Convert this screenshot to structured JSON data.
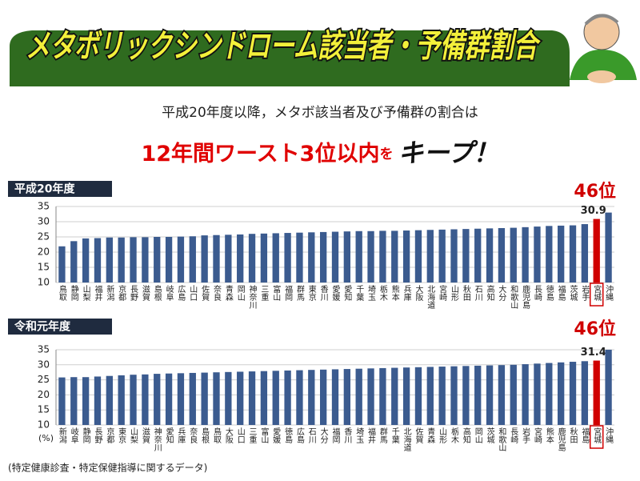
{
  "header": {
    "title": "メタボリックシンドローム該当者・予備群割合",
    "subtitle": "平成20年度以降，メタボ該当者及び予備群の割合は",
    "headline": [
      "12年間ワースト3位以内",
      "を",
      "キープ！"
    ]
  },
  "chart_data": [
    {
      "type": "bar",
      "title": "平成20年度",
      "categories": [
        "鳥取",
        "静岡",
        "山梨",
        "福井",
        "新潟",
        "京都",
        "長野",
        "滋賀",
        "島根",
        "岐阜",
        "広島",
        "山口",
        "佐賀",
        "奈良",
        "青森",
        "岡山",
        "神奈川",
        "三重",
        "富山",
        "福岡",
        "群馬",
        "東京",
        "香川",
        "愛媛",
        "愛知",
        "千葉",
        "埼玉",
        "栃木",
        "熊本",
        "兵庫",
        "大阪",
        "北海道",
        "宮崎",
        "山形",
        "秋田",
        "石川",
        "高知",
        "大分",
        "和歌山",
        "鹿児島",
        "長崎",
        "徳島",
        "福島",
        "茨城",
        "岩手",
        "宮城",
        "沖縄"
      ],
      "values": [
        21.9,
        23.6,
        24.5,
        24.6,
        24.8,
        24.8,
        24.9,
        24.9,
        25.0,
        25.0,
        25.1,
        25.2,
        25.5,
        25.6,
        25.7,
        25.8,
        26.0,
        26.1,
        26.2,
        26.3,
        26.4,
        26.5,
        26.6,
        26.7,
        26.8,
        26.9,
        26.9,
        27.0,
        27.0,
        27.1,
        27.2,
        27.3,
        27.4,
        27.5,
        27.6,
        27.7,
        27.8,
        27.9,
        28.0,
        28.2,
        28.4,
        28.6,
        28.7,
        28.8,
        29.2,
        30.9,
        33.0
      ],
      "color": "#3b5b8f",
      "ylim": [
        10,
        35
      ],
      "yticks": [
        10,
        15,
        20,
        25,
        30,
        35
      ],
      "grid": true,
      "highlight": {
        "category": "宮城",
        "color": "#d00000",
        "rank": "46位"
      }
    },
    {
      "type": "bar",
      "title": "令和元年度",
      "categories": [
        "新潟",
        "岐阜",
        "静岡",
        "長野",
        "京都",
        "東京",
        "山梨",
        "滋賀",
        "神奈川",
        "愛知",
        "兵庫",
        "奈良",
        "島根",
        "鳥取",
        "大阪",
        "山口",
        "三重",
        "富山",
        "愛媛",
        "徳島",
        "広島",
        "石川",
        "大分",
        "福岡",
        "香川",
        "埼玉",
        "福井",
        "群馬",
        "千葉",
        "北海道",
        "佐賀",
        "青森",
        "山形",
        "栃木",
        "高知",
        "岡山",
        "茨城",
        "和歌山",
        "長崎",
        "岩手",
        "宮崎",
        "熊本",
        "鹿児島",
        "秋田",
        "福島",
        "宮城",
        "沖縄"
      ],
      "values": [
        25.8,
        25.9,
        25.9,
        26.1,
        26.3,
        26.5,
        26.7,
        26.8,
        27.0,
        27.1,
        27.2,
        27.3,
        27.4,
        27.5,
        27.6,
        27.7,
        27.8,
        27.9,
        28.0,
        28.1,
        28.2,
        28.3,
        28.4,
        28.5,
        28.6,
        28.7,
        28.8,
        28.9,
        29.0,
        29.1,
        29.2,
        29.3,
        29.4,
        29.5,
        29.6,
        29.7,
        29.8,
        29.9,
        30.0,
        30.2,
        30.4,
        30.6,
        30.8,
        31.0,
        31.2,
        31.4,
        35.0
      ],
      "color": "#3b5b8f",
      "ylim": [
        10,
        35
      ],
      "yticks": [
        10,
        15,
        20,
        25,
        30,
        35
      ],
      "grid": true,
      "highlight": {
        "category": "宮城",
        "color": "#d00000",
        "rank": "46位"
      },
      "y_unit": "(%)"
    }
  ],
  "footnote": "(特定健康診査・特定保健指導に関するデータ)"
}
